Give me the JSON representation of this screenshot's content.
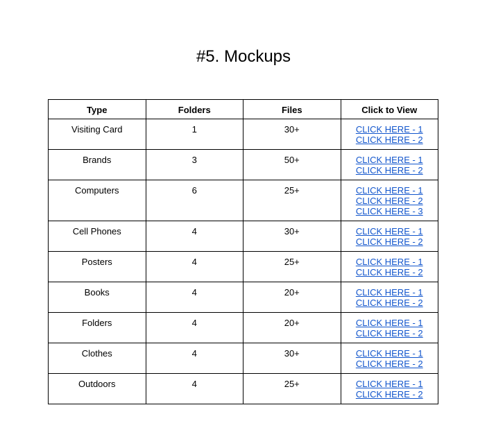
{
  "title": "#5. Mockups",
  "headers": [
    "Type",
    "Folders",
    "Files",
    "Click to View"
  ],
  "rows": [
    {
      "type": "Visiting Card",
      "folders": "1",
      "files": "30+",
      "links": [
        "CLICK HERE - 1",
        "CLICK HERE - 2"
      ]
    },
    {
      "type": "Brands",
      "folders": "3",
      "files": "50+",
      "links": [
        "CLICK HERE - 1",
        "CLICK HERE - 2"
      ]
    },
    {
      "type": "Computers",
      "folders": "6",
      "files": "25+",
      "links": [
        "CLICK HERE - 1",
        "CLICK HERE - 2",
        "CLICK HERE - 3"
      ]
    },
    {
      "type": "Cell Phones",
      "folders": "4",
      "files": "30+",
      "links": [
        "CLICK HERE - 1",
        "CLICK HERE - 2"
      ]
    },
    {
      "type": "Posters",
      "folders": "4",
      "files": "25+",
      "links": [
        "CLICK HERE - 1",
        "CLICK HERE - 2"
      ]
    },
    {
      "type": "Books",
      "folders": "4",
      "files": "20+",
      "links": [
        "CLICK HERE - 1",
        "CLICK HERE - 2"
      ]
    },
    {
      "type": "Folders",
      "folders": "4",
      "files": "20+",
      "links": [
        "CLICK HERE - 1",
        "CLICK HERE - 2"
      ]
    },
    {
      "type": "Clothes",
      "folders": "4",
      "files": "30+",
      "links": [
        "CLICK HERE - 1",
        "CLICK HERE - 2"
      ]
    },
    {
      "type": "Outdoors",
      "folders": "4",
      "files": "25+",
      "links": [
        "CLICK HERE - 1",
        "CLICK HERE - 2"
      ]
    }
  ],
  "link_color": "#1155cc"
}
